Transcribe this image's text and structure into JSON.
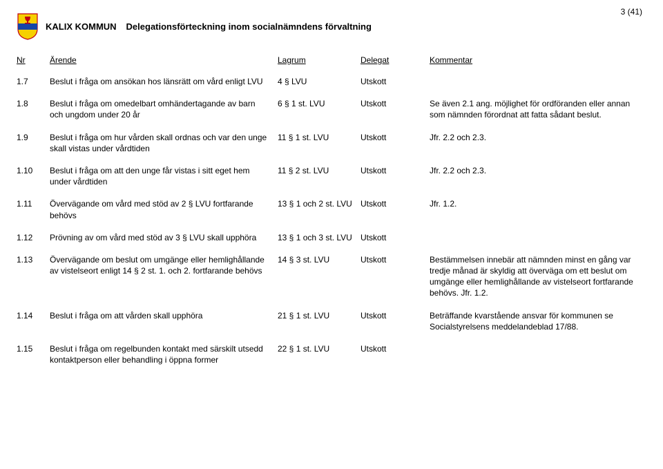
{
  "header": {
    "org": "KALIX KOMMUN",
    "title": "Delegationsförteckning inom socialnämndens förvaltning",
    "page": "3 (41)"
  },
  "columns": {
    "nr": "Nr",
    "arende": "Ärende",
    "lagrum": "Lagrum",
    "delegat": "Delegat",
    "kommentar": "Kommentar"
  },
  "rows": [
    {
      "nr": "1.7",
      "arende": "Beslut i fråga om ansökan hos länsrätt om vård enligt LVU",
      "lagrum": "4 § LVU",
      "delegat": "Utskott",
      "kommentar": ""
    },
    {
      "nr": "1.8",
      "arende": "Beslut i fråga om omedelbart omhändertagande av barn och ungdom under 20 år",
      "lagrum": "6 § 1 st. LVU",
      "delegat": "Utskott",
      "kommentar": "Se även 2.1 ang. möjlighet för ordföranden eller annan som nämnden förordnat att fatta sådant beslut."
    },
    {
      "nr": "1.9",
      "arende": "Beslut i fråga om hur vården skall ordnas och var den unge skall vistas under vårdtiden",
      "lagrum": "11 § 1 st. LVU",
      "delegat": "Utskott",
      "kommentar": "Jfr. 2.2 och 2.3."
    },
    {
      "nr": "1.10",
      "arende": "Beslut i fråga om att den unge får vistas i sitt eget hem under vårdtiden",
      "lagrum": "11 § 2 st. LVU",
      "delegat": "Utskott",
      "kommentar": "Jfr. 2.2 och 2.3."
    },
    {
      "nr": "1.11",
      "arende": "Övervägande om vård med stöd av 2 § LVU fortfarande behövs",
      "lagrum": "13 § 1 och 2 st. LVU",
      "delegat": "Utskott",
      "kommentar": "Jfr. 1.2."
    },
    {
      "nr": "1.12",
      "arende": "Prövning av om vård med stöd av 3 § LVU skall upphöra",
      "lagrum": "13 § 1 och 3 st. LVU",
      "delegat": "Utskott",
      "kommentar": ""
    },
    {
      "nr": "1.13",
      "arende": "Övervägande om beslut om umgänge eller hemlighållande av vistelseort enligt 14 § 2 st. 1. och 2. fortfarande behövs",
      "lagrum": "14 § 3 st. LVU",
      "delegat": "Utskott",
      "kommentar": "Bestämmelsen innebär att nämnden minst en gång var tredje månad är skyldig att överväga om ett beslut om umgänge eller hemlighållande av vistelseort fortfarande behövs. Jfr. 1.2."
    },
    {
      "nr": "1.14",
      "arende": "Beslut i fråga om att vården skall upphöra",
      "lagrum": "21 § 1 st. LVU",
      "delegat": "Utskott",
      "kommentar": "Beträffande kvarstående ansvar för kommunen se Socialstyrelsens meddelandeblad 17/88."
    },
    {
      "nr": "1.15",
      "arende": "Beslut i fråga om regelbunden kontakt med särskilt utsedd kontaktperson eller behandling i öppna former",
      "lagrum": "22 § 1 st. LVU",
      "delegat": "Utskott",
      "kommentar": ""
    }
  ],
  "logo": {
    "shield_fill": "#f6d000",
    "shield_stroke": "#c00010",
    "band_fill": "#1544a8",
    "cup_fill": "#c00010"
  }
}
